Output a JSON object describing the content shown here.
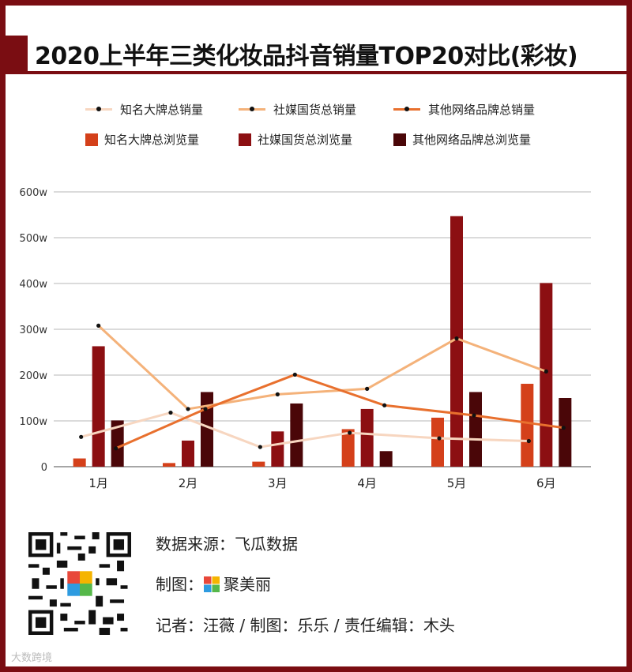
{
  "title": "2020上半年三类化妆品抖音销量TOP20对比(彩妆)",
  "legend": {
    "lines": [
      {
        "name": "知名大牌总销量",
        "color": "#f7d6c0"
      },
      {
        "name": "社媒国货总销量",
        "color": "#f4b27a"
      },
      {
        "name": "其他网络品牌总销量",
        "color": "#e8702e"
      }
    ],
    "bars": [
      {
        "name": "知名大牌总浏览量",
        "color": "#d4401a"
      },
      {
        "name": "社媒国货总浏览量",
        "color": "#8c0f12"
      },
      {
        "name": "其他网络品牌总浏览量",
        "color": "#4a0608"
      }
    ]
  },
  "chart_data": {
    "type": "bar",
    "categories": [
      "1月",
      "2月",
      "3月",
      "4月",
      "5月",
      "6月"
    ],
    "y_ticks": [
      "0",
      "100w",
      "200w",
      "300w",
      "400w",
      "500w",
      "600w"
    ],
    "ylim": [
      0,
      600
    ],
    "grid": true,
    "legend_position": "top",
    "bar_series": [
      {
        "name": "知名大牌总浏览量",
        "color": "#d4401a",
        "values": [
          18,
          8,
          11,
          82,
          107,
          181
        ]
      },
      {
        "name": "社媒国货总浏览量",
        "color": "#8c0f12",
        "values": [
          263,
          57,
          77,
          126,
          547,
          401
        ]
      },
      {
        "name": "其他网络品牌总浏览量",
        "color": "#4a0608",
        "values": [
          101,
          163,
          138,
          34,
          163,
          150
        ]
      }
    ],
    "line_series": [
      {
        "name": "知名大牌总销量",
        "color": "#f7d6c0",
        "values": [
          65,
          118,
          43,
          74,
          62,
          56
        ]
      },
      {
        "name": "社媒国货总销量",
        "color": "#f4b27a",
        "values": [
          308,
          126,
          158,
          170,
          280,
          208
        ]
      },
      {
        "name": "其他网络品牌总销量",
        "color": "#e8702e",
        "values": [
          40,
          126,
          201,
          134,
          112,
          85
        ]
      }
    ]
  },
  "footer": {
    "source": "数据来源：飞瓜数据",
    "maker_label": "制图：",
    "maker_brand": "聚美丽",
    "credits": "记者：汪薇 / 制图：乐乐 / 责任编辑：木头"
  },
  "watermark": "大数跨境"
}
